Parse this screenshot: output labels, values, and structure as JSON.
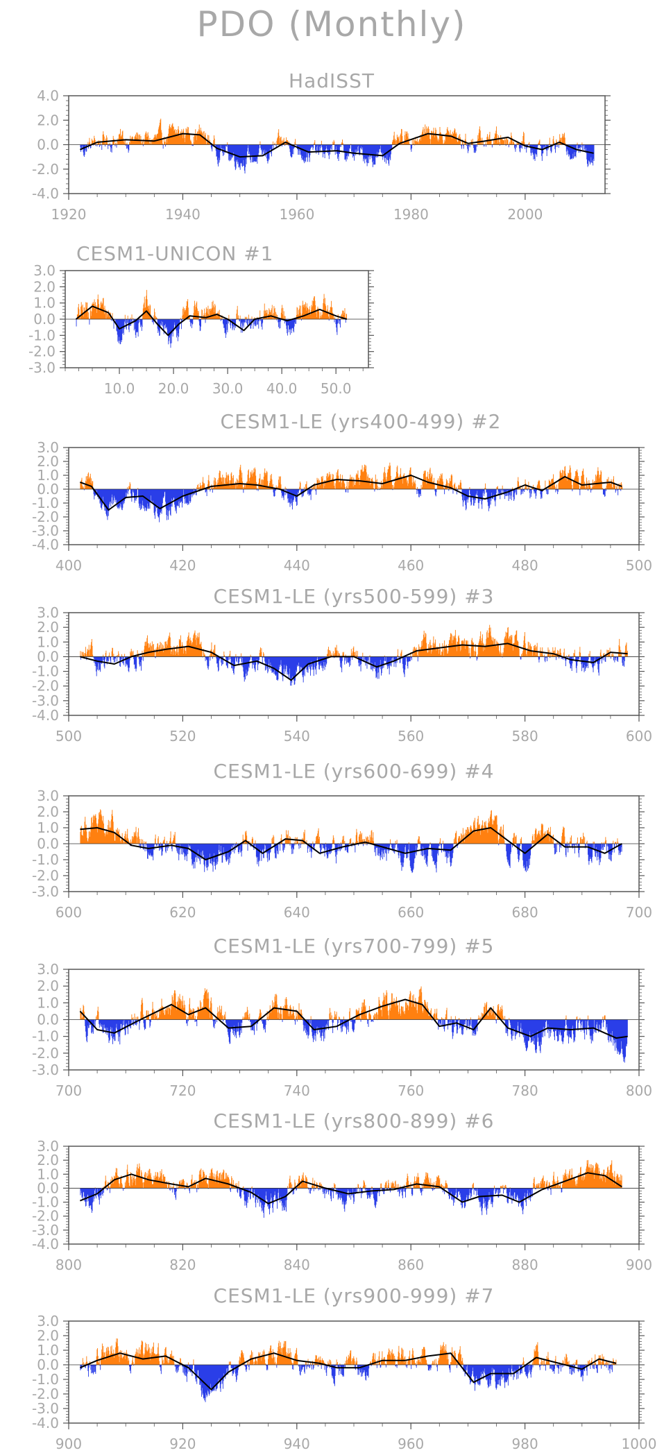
{
  "title": "PDO (Monthly)",
  "colors": {
    "positive": "#ff8010",
    "negative": "#2a3ee8",
    "smooth": "#000000",
    "axis": "#555555",
    "text": "#a8a8a8"
  },
  "chart_data": [
    {
      "type": "bar",
      "name": "HadISST",
      "title": "HadISST",
      "xlim": [
        1920,
        2014
      ],
      "ylim": [
        -4.0,
        4.0
      ],
      "yticks": [
        -4.0,
        -2.0,
        0.0,
        2.0,
        4.0
      ],
      "yticklabels": [
        "-4.0",
        "-2.0",
        "0.0",
        "2.0",
        "4.0"
      ],
      "xticks": [
        1920,
        1940,
        1960,
        1980,
        2000
      ],
      "xticklabels": [
        "1920",
        "1940",
        "1960",
        "1980",
        "2000"
      ],
      "smooth": [
        [
          1922,
          -0.4
        ],
        [
          1925,
          0.2
        ],
        [
          1930,
          0.4
        ],
        [
          1935,
          0.3
        ],
        [
          1940,
          0.9
        ],
        [
          1943,
          0.8
        ],
        [
          1946,
          -0.3
        ],
        [
          1950,
          -1.0
        ],
        [
          1954,
          -0.9
        ],
        [
          1958,
          0.2
        ],
        [
          1962,
          -0.6
        ],
        [
          1967,
          -0.5
        ],
        [
          1970,
          -0.7
        ],
        [
          1975,
          -0.9
        ],
        [
          1978,
          0.1
        ],
        [
          1983,
          0.9
        ],
        [
          1987,
          0.7
        ],
        [
          1990,
          0.1
        ],
        [
          1993,
          0.3
        ],
        [
          1997,
          0.6
        ],
        [
          2000,
          -0.1
        ],
        [
          2003,
          -0.4
        ],
        [
          2006,
          0.2
        ],
        [
          2009,
          -0.4
        ],
        [
          2012,
          -0.7
        ]
      ]
    },
    {
      "type": "bar",
      "name": "CESM1-UNICON",
      "title": "CESM1-UNICON        #1",
      "xlim": [
        0,
        56
      ],
      "ylim": [
        -3.0,
        3.0
      ],
      "yticks": [
        -3.0,
        -2.0,
        -1.0,
        0.0,
        1.0,
        2.0,
        3.0
      ],
      "yticklabels": [
        "-3.0",
        "-2.0",
        "-1.0",
        "0.0",
        "1.0",
        "2.0",
        "3.0"
      ],
      "xticks": [
        10,
        20,
        30,
        40,
        50
      ],
      "xticklabels": [
        "10.0",
        "20.0",
        "30.0",
        "40.0",
        "50.0"
      ],
      "smooth": [
        [
          2,
          0.0
        ],
        [
          5,
          0.8
        ],
        [
          8,
          0.4
        ],
        [
          10,
          -0.6
        ],
        [
          13,
          -0.1
        ],
        [
          15,
          0.5
        ],
        [
          17,
          -0.3
        ],
        [
          19,
          -1.0
        ],
        [
          21,
          -0.3
        ],
        [
          23,
          0.2
        ],
        [
          26,
          0.1
        ],
        [
          28,
          0.3
        ],
        [
          30,
          0.0
        ],
        [
          33,
          -0.7
        ],
        [
          35,
          0.0
        ],
        [
          38,
          0.2
        ],
        [
          41,
          -0.1
        ],
        [
          44,
          0.2
        ],
        [
          47,
          0.6
        ],
        [
          50,
          0.2
        ],
        [
          52,
          0.0
        ]
      ]
    },
    {
      "type": "bar",
      "name": "CESM1-LE #2",
      "title": "CESM1-LE (yrs400-499) #2",
      "xlim": [
        400,
        500
      ],
      "ylim": [
        -4.0,
        3.0
      ],
      "yticks": [
        -4.0,
        -3.0,
        -2.0,
        -1.0,
        0.0,
        1.0,
        2.0,
        3.0
      ],
      "yticklabels": [
        "-4.0",
        "-3.0",
        "-2.0",
        "-1.0",
        "0.0",
        "1.0",
        "2.0",
        "3.0"
      ],
      "xticks": [
        400,
        420,
        440,
        460,
        480,
        500
      ],
      "xticklabels": [
        "400",
        "420",
        "440",
        "460",
        "480",
        "500"
      ],
      "smooth": [
        [
          402,
          0.5
        ],
        [
          404,
          0.2
        ],
        [
          407,
          -1.5
        ],
        [
          410,
          -0.6
        ],
        [
          413,
          -0.5
        ],
        [
          416,
          -1.4
        ],
        [
          420,
          -0.5
        ],
        [
          425,
          0.2
        ],
        [
          430,
          0.4
        ],
        [
          433,
          0.3
        ],
        [
          437,
          0.0
        ],
        [
          440,
          -0.5
        ],
        [
          443,
          0.3
        ],
        [
          447,
          0.7
        ],
        [
          451,
          0.6
        ],
        [
          455,
          0.4
        ],
        [
          460,
          1.0
        ],
        [
          463,
          0.5
        ],
        [
          467,
          0.1
        ],
        [
          470,
          -0.5
        ],
        [
          473,
          -0.7
        ],
        [
          477,
          -0.2
        ],
        [
          480,
          0.3
        ],
        [
          483,
          -0.1
        ],
        [
          487,
          0.9
        ],
        [
          490,
          0.3
        ],
        [
          495,
          0.5
        ],
        [
          497,
          0.2
        ]
      ]
    },
    {
      "type": "bar",
      "name": "CESM1-LE #3",
      "title": "CESM1-LE (yrs500-599) #3",
      "xlim": [
        500,
        600
      ],
      "ylim": [
        -4.0,
        3.0
      ],
      "yticks": [
        -4.0,
        -3.0,
        -2.0,
        -1.0,
        0.0,
        1.0,
        2.0,
        3.0
      ],
      "yticklabels": [
        "-4.0",
        "-3.0",
        "-2.0",
        "-1.0",
        "0.0",
        "1.0",
        "2.0",
        "3.0"
      ],
      "xticks": [
        500,
        520,
        540,
        560,
        580,
        600
      ],
      "xticklabels": [
        "500",
        "520",
        "540",
        "560",
        "580",
        "600"
      ],
      "smooth": [
        [
          502,
          0.0
        ],
        [
          505,
          -0.3
        ],
        [
          508,
          -0.5
        ],
        [
          511,
          0.0
        ],
        [
          514,
          0.3
        ],
        [
          517,
          0.5
        ],
        [
          521,
          0.7
        ],
        [
          525,
          0.3
        ],
        [
          529,
          -0.6
        ],
        [
          533,
          -0.3
        ],
        [
          536,
          -0.8
        ],
        [
          539,
          -1.6
        ],
        [
          542,
          -0.5
        ],
        [
          546,
          0.0
        ],
        [
          550,
          0.0
        ],
        [
          554,
          -0.7
        ],
        [
          557,
          -0.3
        ],
        [
          561,
          0.4
        ],
        [
          565,
          0.6
        ],
        [
          569,
          0.8
        ],
        [
          573,
          0.7
        ],
        [
          577,
          0.9
        ],
        [
          581,
          0.4
        ],
        [
          585,
          0.2
        ],
        [
          588,
          -0.2
        ],
        [
          592,
          -0.4
        ],
        [
          595,
          0.3
        ],
        [
          598,
          0.2
        ]
      ]
    },
    {
      "type": "bar",
      "name": "CESM1-LE #4",
      "title": "CESM1-LE (yrs600-699) #4",
      "xlim": [
        600,
        700
      ],
      "ylim": [
        -3.0,
        3.0
      ],
      "yticks": [
        -3.0,
        -2.0,
        -1.0,
        0.0,
        1.0,
        2.0,
        3.0
      ],
      "yticklabels": [
        "-3.0",
        "-2.0",
        "-1.0",
        "0.0",
        "1.0",
        "2.0",
        "3.0"
      ],
      "xticks": [
        600,
        620,
        640,
        660,
        680,
        700
      ],
      "xticklabels": [
        "600",
        "620",
        "640",
        "660",
        "680",
        "700"
      ],
      "smooth": [
        [
          602,
          0.9
        ],
        [
          605,
          1.0
        ],
        [
          608,
          0.7
        ],
        [
          611,
          -0.1
        ],
        [
          614,
          -0.3
        ],
        [
          618,
          -0.1
        ],
        [
          621,
          -0.3
        ],
        [
          624,
          -1.0
        ],
        [
          628,
          -0.5
        ],
        [
          631,
          0.2
        ],
        [
          634,
          -0.6
        ],
        [
          638,
          0.3
        ],
        [
          641,
          0.2
        ],
        [
          644,
          -0.6
        ],
        [
          648,
          -0.2
        ],
        [
          652,
          0.1
        ],
        [
          656,
          -0.3
        ],
        [
          659,
          -0.6
        ],
        [
          663,
          -0.3
        ],
        [
          667,
          -0.4
        ],
        [
          671,
          0.8
        ],
        [
          674,
          1.0
        ],
        [
          677,
          0.2
        ],
        [
          680,
          -0.6
        ],
        [
          684,
          0.6
        ],
        [
          687,
          -0.2
        ],
        [
          691,
          -0.2
        ],
        [
          694,
          -0.6
        ],
        [
          697,
          0.0
        ]
      ]
    },
    {
      "type": "bar",
      "name": "CESM1-LE #5",
      "title": "CESM1-LE (yrs700-799) #5",
      "xlim": [
        700,
        800
      ],
      "ylim": [
        -3.0,
        3.0
      ],
      "yticks": [
        -3.0,
        -2.0,
        -1.0,
        0.0,
        1.0,
        2.0,
        3.0
      ],
      "yticklabels": [
        "-3.0",
        "-2.0",
        "-1.0",
        "0.0",
        "1.0",
        "2.0",
        "3.0"
      ],
      "xticks": [
        700,
        720,
        740,
        760,
        780,
        800
      ],
      "xticklabels": [
        "700",
        "720",
        "740",
        "760",
        "780",
        "800"
      ],
      "smooth": [
        [
          702,
          0.5
        ],
        [
          705,
          -0.6
        ],
        [
          708,
          -0.8
        ],
        [
          712,
          -0.1
        ],
        [
          715,
          0.4
        ],
        [
          718,
          0.9
        ],
        [
          721,
          0.3
        ],
        [
          724,
          0.7
        ],
        [
          728,
          -0.5
        ],
        [
          732,
          -0.4
        ],
        [
          736,
          0.7
        ],
        [
          740,
          0.5
        ],
        [
          743,
          -0.6
        ],
        [
          747,
          -0.4
        ],
        [
          751,
          0.3
        ],
        [
          755,
          0.8
        ],
        [
          759,
          1.2
        ],
        [
          762,
          0.9
        ],
        [
          765,
          -0.4
        ],
        [
          768,
          -0.2
        ],
        [
          771,
          -0.6
        ],
        [
          774,
          0.7
        ],
        [
          777,
          -0.5
        ],
        [
          781,
          -1.0
        ],
        [
          784,
          -0.5
        ],
        [
          788,
          -0.6
        ],
        [
          792,
          -0.5
        ],
        [
          796,
          -1.1
        ],
        [
          798,
          -1.0
        ]
      ]
    },
    {
      "type": "bar",
      "name": "CESM1-LE #6",
      "title": "CESM1-LE (yrs800-899) #6",
      "xlim": [
        800,
        900
      ],
      "ylim": [
        -4.0,
        3.0
      ],
      "yticks": [
        -4.0,
        -3.0,
        -2.0,
        -1.0,
        0.0,
        1.0,
        2.0,
        3.0
      ],
      "yticklabels": [
        "-4.0",
        "-3.0",
        "-2.0",
        "-1.0",
        "0.0",
        "1.0",
        "2.0",
        "3.0"
      ],
      "xticks": [
        800,
        820,
        840,
        860,
        880,
        900
      ],
      "xticklabels": [
        "800",
        "820",
        "840",
        "860",
        "880",
        "900"
      ],
      "smooth": [
        [
          802,
          -0.9
        ],
        [
          805,
          -0.4
        ],
        [
          808,
          0.6
        ],
        [
          811,
          1.0
        ],
        [
          814,
          0.6
        ],
        [
          818,
          0.3
        ],
        [
          821,
          0.1
        ],
        [
          824,
          0.7
        ],
        [
          828,
          0.3
        ],
        [
          832,
          -0.3
        ],
        [
          835,
          -1.1
        ],
        [
          838,
          -0.6
        ],
        [
          841,
          0.5
        ],
        [
          845,
          0.0
        ],
        [
          849,
          -0.4
        ],
        [
          853,
          -0.2
        ],
        [
          857,
          -0.1
        ],
        [
          861,
          0.3
        ],
        [
          865,
          0.1
        ],
        [
          869,
          -1.0
        ],
        [
          872,
          -0.6
        ],
        [
          876,
          -0.5
        ],
        [
          879,
          -1.0
        ],
        [
          883,
          -0.1
        ],
        [
          887,
          0.5
        ],
        [
          891,
          1.1
        ],
        [
          894,
          0.9
        ],
        [
          897,
          0.1
        ]
      ]
    },
    {
      "type": "bar",
      "name": "CESM1-LE #7",
      "title": "CESM1-LE (yrs900-999) #7",
      "xlim": [
        900,
        1000
      ],
      "ylim": [
        -4.0,
        3.0
      ],
      "yticks": [
        -4.0,
        -3.0,
        -2.0,
        -1.0,
        0.0,
        1.0,
        2.0,
        3.0
      ],
      "yticklabels": [
        "-4.0",
        "-3.0",
        "-2.0",
        "-1.0",
        "0.0",
        "1.0",
        "2.0",
        "3.0"
      ],
      "xticks": [
        900,
        920,
        940,
        960,
        980,
        1000
      ],
      "xticklabels": [
        "900",
        "920",
        "940",
        "960",
        "980",
        "1000"
      ],
      "smooth": [
        [
          902,
          -0.2
        ],
        [
          905,
          0.3
        ],
        [
          909,
          0.8
        ],
        [
          913,
          0.4
        ],
        [
          917,
          0.6
        ],
        [
          921,
          -0.2
        ],
        [
          925,
          -1.7
        ],
        [
          928,
          -0.5
        ],
        [
          932,
          0.4
        ],
        [
          936,
          0.8
        ],
        [
          940,
          0.3
        ],
        [
          944,
          0.1
        ],
        [
          947,
          -0.2
        ],
        [
          951,
          -0.2
        ],
        [
          955,
          0.3
        ],
        [
          959,
          0.3
        ],
        [
          963,
          0.6
        ],
        [
          967,
          0.8
        ],
        [
          971,
          -1.2
        ],
        [
          974,
          -0.6
        ],
        [
          978,
          -0.6
        ],
        [
          982,
          0.5
        ],
        [
          986,
          0.1
        ],
        [
          990,
          -0.3
        ],
        [
          993,
          0.4
        ],
        [
          996,
          0.1
        ]
      ]
    }
  ]
}
